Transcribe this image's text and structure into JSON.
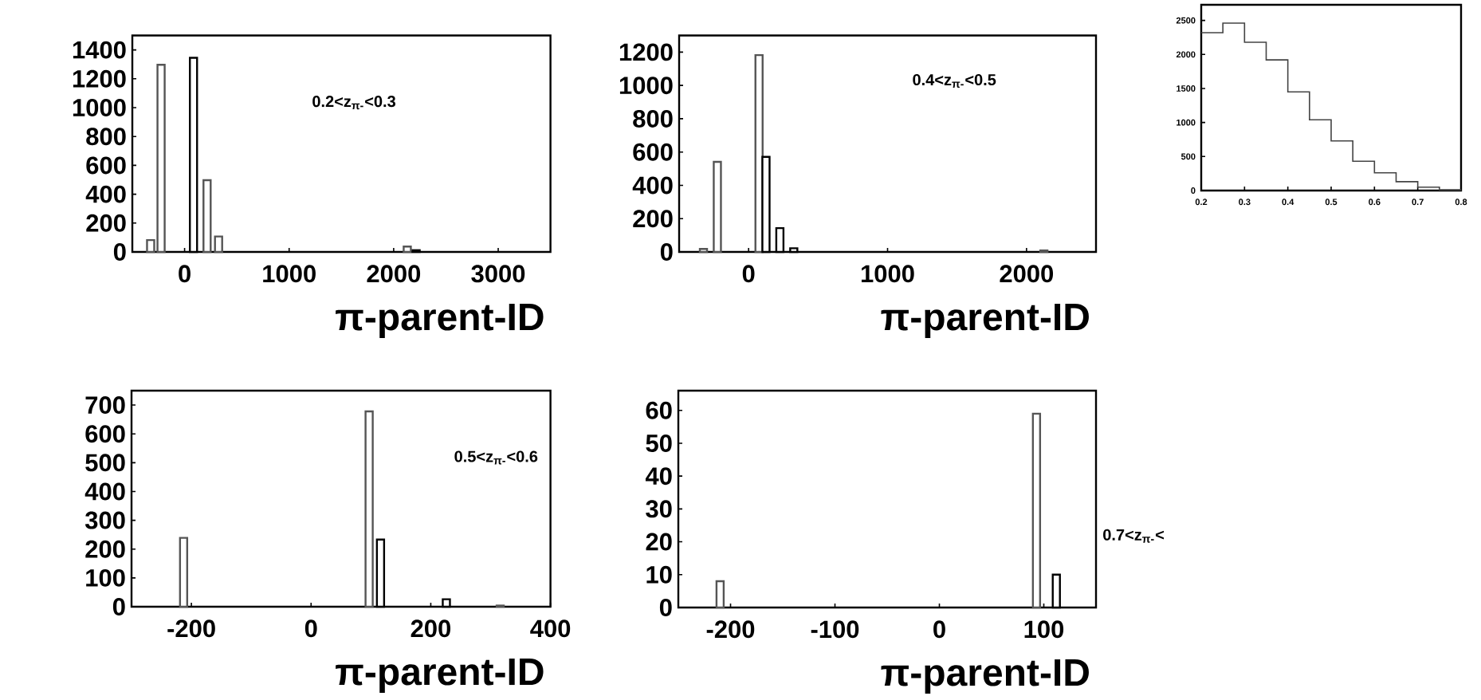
{
  "chart_data": [
    {
      "type": "bar",
      "x": [
        -325,
        -225,
        85,
        215,
        325,
        2130,
        2215
      ],
      "values": [
        82,
        1297,
        1345,
        497,
        107,
        37,
        12
      ],
      "colors": [
        "#555555",
        "#555555",
        "#000000",
        "#555555",
        "#555555",
        "#555555",
        "#000000"
      ],
      "xlim": [
        -500,
        3500
      ],
      "ylim": [
        0,
        1500
      ],
      "xticks": [
        0,
        1000,
        2000,
        3000
      ],
      "yticks": [
        0,
        200,
        400,
        600,
        800,
        1000,
        1200,
        1400
      ],
      "xlabel": "π-parent-ID",
      "annotations": [
        "0.2<z$_{π-}$<0.3"
      ]
    },
    {
      "type": "bar",
      "x": [
        -325,
        -225,
        75,
        125,
        225,
        325,
        2125
      ],
      "values": [
        18,
        541,
        1182,
        571,
        143,
        22,
        9
      ],
      "colors": [
        "#555555",
        "#555555",
        "#555555",
        "#000000",
        "#000000",
        "#000000",
        "#555555"
      ],
      "xlim": [
        -500,
        2500
      ],
      "ylim": [
        0,
        1300
      ],
      "xticks": [
        0,
        1000,
        2000
      ],
      "yticks": [
        0,
        200,
        400,
        600,
        800,
        1000,
        1200
      ],
      "xlabel": "π-parent-ID",
      "annotations": [
        "0.4<z$_{π-}$<0.5"
      ]
    },
    {
      "type": "histogram",
      "bins": [
        0.2,
        0.25,
        0.3,
        0.35,
        0.4,
        0.45,
        0.5,
        0.55,
        0.6,
        0.65,
        0.7,
        0.75,
        0.8
      ],
      "values": [
        2320,
        2460,
        2180,
        1920,
        1450,
        1040,
        730,
        430,
        260,
        130,
        50,
        10
      ],
      "color": "#444444",
      "xlim": [
        0.2,
        0.8
      ],
      "ylim": [
        0,
        2730
      ],
      "xticks": [
        0.2,
        0.3,
        0.4,
        0.5,
        0.6,
        0.7,
        0.8
      ],
      "yticks": [
        0,
        500,
        1000,
        1500,
        2000,
        2500
      ]
    },
    {
      "type": "bar",
      "x": [
        -213,
        97,
        116,
        226,
        316
      ],
      "values": [
        239,
        678,
        233,
        26,
        4
      ],
      "colors": [
        "#555555",
        "#555555",
        "#000000",
        "#000000",
        "#555555"
      ],
      "xlim": [
        -300,
        400
      ],
      "ylim": [
        0,
        750
      ],
      "xticks": [
        -200,
        0,
        200,
        400
      ],
      "yticks": [
        0,
        100,
        200,
        300,
        400,
        500,
        600,
        700
      ],
      "xlabel": "π-parent-ID",
      "annotations": [
        "0.5<z$_{π-}$<0.6"
      ]
    },
    {
      "type": "bar",
      "x": [
        -210,
        93,
        112
      ],
      "values": [
        8,
        59,
        10
      ],
      "colors": [
        "#555555",
        "#555555",
        "#000000"
      ],
      "xlim": [
        -250,
        150
      ],
      "ylim": [
        0,
        66
      ],
      "xticks": [
        -200,
        -100,
        0,
        100
      ],
      "yticks": [
        0,
        10,
        20,
        30,
        40,
        50,
        60
      ],
      "xlabel": "π-parent-ID",
      "annotations": [
        "0.7<z$_{π-}$<"
      ]
    }
  ]
}
